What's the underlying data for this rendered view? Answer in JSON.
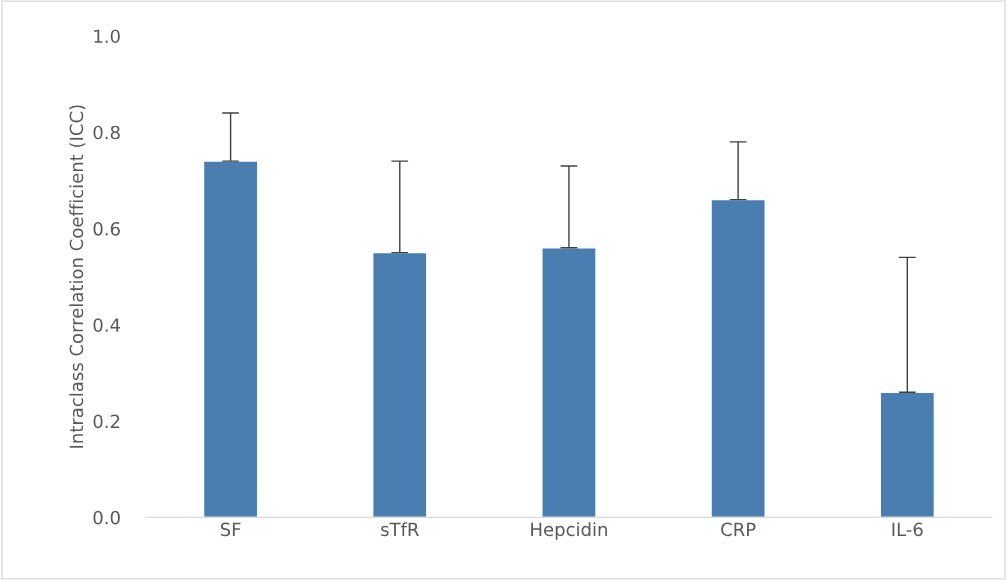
{
  "chart_data": {
    "type": "bar",
    "ylabel": "Intraclass Correlation Coefficient (ICC)",
    "categories": [
      "SF",
      "sTfR",
      "Hepcidin",
      "CRP",
      "IL-6"
    ],
    "values": [
      0.74,
      0.55,
      0.56,
      0.66,
      0.26
    ],
    "errors": [
      [
        0.74,
        0.84
      ],
      [
        0.55,
        0.74
      ],
      [
        0.56,
        0.73
      ],
      [
        0.66,
        0.78
      ],
      [
        0.26,
        0.54
      ]
    ],
    "color": "#4a7eb0",
    "ylim": [
      0,
      1.0
    ],
    "yticks": [
      {
        "value": 0,
        "label": "0.0"
      },
      0.2,
      0.4,
      0.6,
      0.8,
      {
        "value": 1.0,
        "label": "1.0"
      }
    ],
    "grid": false,
    "legend": false
  }
}
